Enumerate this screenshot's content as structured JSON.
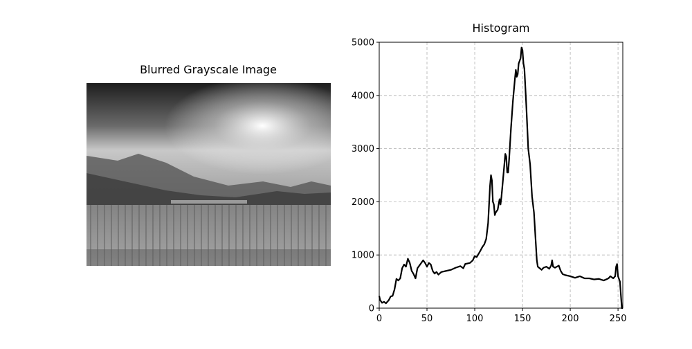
{
  "chart_data": [
    {
      "type": "image",
      "title": "Blurred Grayscale Image"
    },
    {
      "type": "line",
      "title": "Histogram",
      "color": "#000000",
      "grid": true,
      "xlim": [
        0,
        255
      ],
      "ylim": [
        0,
        5000
      ],
      "xticks": [
        0,
        50,
        100,
        150,
        200,
        250
      ],
      "yticks": [
        0,
        1000,
        2000,
        3000,
        4000,
        5000
      ],
      "x": [
        0,
        1,
        3,
        5,
        7,
        10,
        12,
        14,
        16,
        18,
        20,
        22,
        24,
        26,
        28,
        30,
        32,
        34,
        36,
        38,
        40,
        42,
        44,
        46,
        48,
        50,
        52,
        54,
        56,
        58,
        60,
        62,
        65,
        70,
        75,
        80,
        85,
        88,
        90,
        95,
        98,
        100,
        102,
        105,
        108,
        110,
        112,
        114,
        116,
        117,
        118,
        119,
        120,
        121,
        122,
        124,
        126,
        127,
        128,
        130,
        132,
        133,
        134,
        135,
        136,
        138,
        140,
        142,
        143,
        144,
        145,
        146,
        148,
        149,
        150,
        151,
        152,
        154,
        156,
        158,
        160,
        162,
        164,
        165,
        166,
        168,
        170,
        172,
        175,
        178,
        180,
        181,
        182,
        184,
        186,
        188,
        190,
        192,
        195,
        200,
        205,
        210,
        215,
        220,
        225,
        230,
        235,
        240,
        242,
        245,
        247,
        248,
        249,
        250,
        252,
        253,
        254,
        255
      ],
      "values": [
        230,
        150,
        100,
        120,
        90,
        150,
        220,
        230,
        350,
        550,
        520,
        560,
        750,
        820,
        780,
        930,
        850,
        700,
        640,
        560,
        750,
        800,
        850,
        900,
        850,
        780,
        850,
        820,
        700,
        650,
        680,
        630,
        680,
        700,
        720,
        760,
        790,
        750,
        830,
        850,
        900,
        980,
        960,
        1050,
        1150,
        1200,
        1300,
        1600,
        2300,
        2500,
        2400,
        2000,
        1950,
        1750,
        1800,
        1850,
        2050,
        1950,
        2100,
        2500,
        2900,
        2850,
        2550,
        2550,
        2800,
        3400,
        3900,
        4300,
        4480,
        4350,
        4400,
        4600,
        4700,
        4900,
        4850,
        4600,
        4500,
        3800,
        3000,
        2700,
        2100,
        1800,
        1200,
        900,
        780,
        750,
        720,
        760,
        780,
        740,
        800,
        900,
        780,
        760,
        780,
        800,
        700,
        640,
        620,
        600,
        570,
        600,
        560,
        560,
        540,
        550,
        520,
        560,
        600,
        560,
        600,
        780,
        830,
        600,
        500,
        250,
        0,
        0
      ]
    }
  ]
}
